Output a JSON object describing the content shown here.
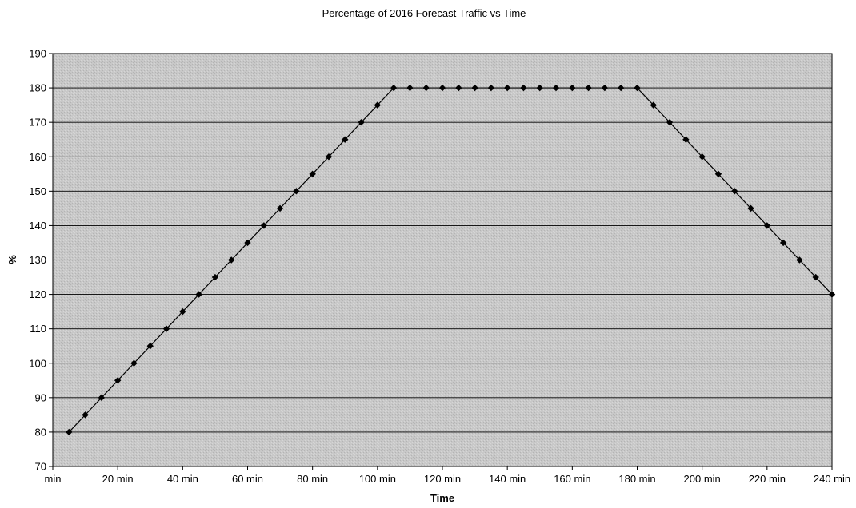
{
  "chart_data": {
    "type": "line",
    "title": "Percentage of 2016 Forecast Traffic vs Time",
    "xlabel": "Time",
    "ylabel": "%",
    "x_unit": "min",
    "xlim": [
      0,
      240
    ],
    "ylim": [
      70,
      190
    ],
    "x_ticks": [
      0,
      20,
      40,
      60,
      80,
      100,
      120,
      140,
      160,
      180,
      200,
      220,
      240
    ],
    "x_tick_labels": [
      "min",
      "20 min",
      "40 min",
      "60 min",
      "80 min",
      "100 min",
      "120 min",
      "140 min",
      "160 min",
      "180 min",
      "200 min",
      "220 min",
      "240 min"
    ],
    "y_ticks": [
      70,
      80,
      90,
      100,
      110,
      120,
      130,
      140,
      150,
      160,
      170,
      180,
      190
    ],
    "grid": true,
    "legend": "none",
    "colors": {
      "plot_background": "#c8c8c8",
      "line": "#000000",
      "marker": "#000000",
      "gridline": "#000000"
    },
    "marker": "diamond",
    "series": [
      {
        "x": [
          5,
          10,
          15,
          20,
          25,
          30,
          35,
          40,
          45,
          50,
          55,
          60,
          65,
          70,
          75,
          80,
          85,
          90,
          95,
          100,
          105,
          110,
          115,
          120,
          125,
          130,
          135,
          140,
          145,
          150,
          155,
          160,
          165,
          170,
          175,
          180,
          185,
          190,
          195,
          200,
          205,
          210,
          215,
          220,
          225,
          230,
          235,
          240
        ],
        "values": [
          80,
          85,
          90,
          95,
          100,
          105,
          110,
          115,
          120,
          125,
          130,
          135,
          140,
          145,
          150,
          155,
          160,
          165,
          170,
          175,
          180,
          180,
          180,
          180,
          180,
          180,
          180,
          180,
          180,
          180,
          180,
          180,
          180,
          180,
          180,
          180,
          175,
          170,
          165,
          160,
          155,
          150,
          145,
          140,
          135,
          130,
          125,
          120
        ]
      }
    ]
  }
}
